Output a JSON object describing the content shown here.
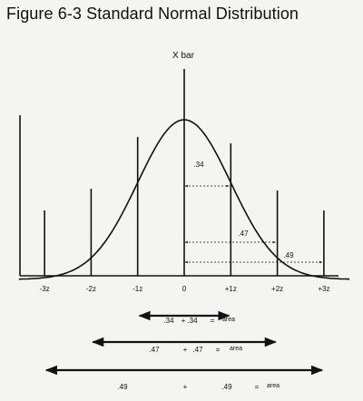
{
  "title": "Figure 6-3  Standard Normal Distribution",
  "mean_label": "X bar",
  "ticks": [
    {
      "label": "-3z",
      "z": -3
    },
    {
      "label": "-2z",
      "z": -2
    },
    {
      "label": "-1z",
      "z": -1
    },
    {
      "label": "0",
      "z": 0
    },
    {
      "label": "+1z",
      "z": 1
    },
    {
      "label": "+2z",
      "z": 2
    },
    {
      "label": "+3z",
      "z": 3
    }
  ],
  "bands": [
    {
      "label": ".34",
      "z": 1
    },
    {
      "label": ".47",
      "z": 2
    },
    {
      "label": ".49",
      "z": 3
    }
  ],
  "equations": [
    {
      "left": ".34",
      "op": "+",
      "right": ".34",
      "eq": "=",
      "result": "area",
      "z": 1
    },
    {
      "left": ".47",
      "op": "+",
      "right": ".47",
      "eq": "=",
      "result": "area",
      "z": 2
    },
    {
      "left": ".49",
      "op": "+",
      "right": ".49",
      "eq": "=",
      "result": "area",
      "z": 3
    }
  ],
  "colors": {
    "ink": "#111111",
    "background": "#f4f4f2"
  }
}
